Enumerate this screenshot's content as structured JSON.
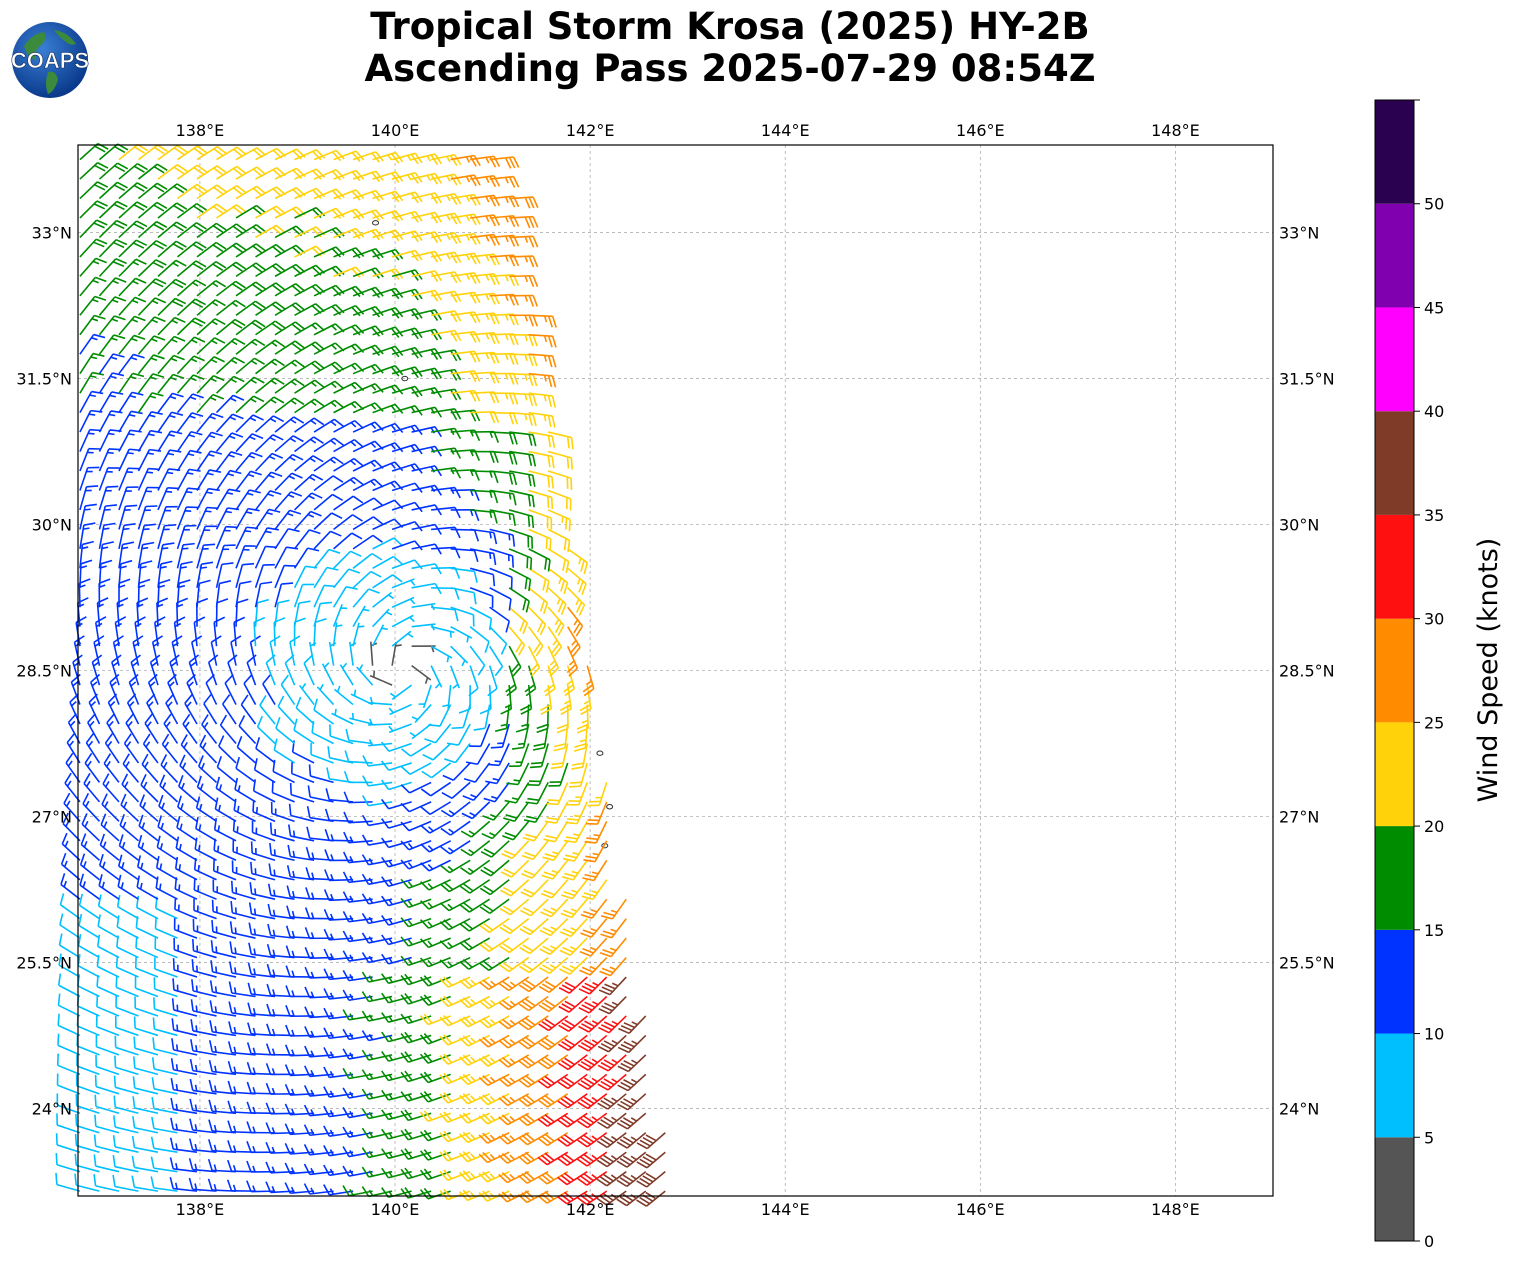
{
  "header": {
    "title_line1": "Tropical Storm Krosa (2025) HY-2B",
    "title_line2": "Ascending Pass 2025-07-29 08:54Z",
    "logo_text": "COAPS"
  },
  "map": {
    "projection": "PlateCarree",
    "lon_range": [
      136.75,
      149.0
    ],
    "lat_range": [
      23.1,
      33.9
    ],
    "gridlines": true,
    "lon_ticks": [
      "138°E",
      "140°E",
      "142°E",
      "144°E",
      "146°E",
      "148°E"
    ],
    "lat_ticks": [
      "33°N",
      "31.5°N",
      "30°N",
      "28.5°N",
      "27°N",
      "25.5°N",
      "24°N"
    ],
    "lon_values": [
      138,
      140,
      142,
      144,
      146,
      148
    ],
    "lat_values": [
      33,
      31.5,
      30,
      28.5,
      27,
      25.5,
      24
    ],
    "storm_center": {
      "lon": 140.1,
      "lat": 28.5
    },
    "swath_east_edge": {
      "lat_top": 33.9,
      "lon_at_top": 141.1,
      "lat_bottom": 23.1,
      "lon_at_bottom": 142.9
    },
    "islands": [
      {
        "lon": 139.8,
        "lat": 33.1
      },
      {
        "lon": 140.1,
        "lat": 31.5
      },
      {
        "lon": 142.2,
        "lat": 27.1
      },
      {
        "lon": 142.15,
        "lat": 26.7
      },
      {
        "lon": 142.1,
        "lat": 27.65
      }
    ]
  },
  "colorbar": {
    "label": "Wind Speed (knots)",
    "tick_labels": [
      "0",
      "5",
      "10",
      "15",
      "20",
      "25",
      "30",
      "35",
      "40",
      "45",
      "50"
    ],
    "bins": [
      {
        "min": 0,
        "max": 5,
        "color": "#555555"
      },
      {
        "min": 5,
        "max": 10,
        "color": "#00bfff"
      },
      {
        "min": 10,
        "max": 15,
        "color": "#0033ff"
      },
      {
        "min": 15,
        "max": 20,
        "color": "#008c00"
      },
      {
        "min": 20,
        "max": 25,
        "color": "#ffd20a"
      },
      {
        "min": 25,
        "max": 30,
        "color": "#ff8c00"
      },
      {
        "min": 30,
        "max": 35,
        "color": "#ff1010"
      },
      {
        "min": 35,
        "max": 40,
        "color": "#7f3a28"
      },
      {
        "min": 40,
        "max": 45,
        "color": "#ff00ff"
      },
      {
        "min": 45,
        "max": 50,
        "color": "#8000b0"
      },
      {
        "min": 50,
        "max": 55,
        "color": "#2a0050"
      }
    ]
  }
}
